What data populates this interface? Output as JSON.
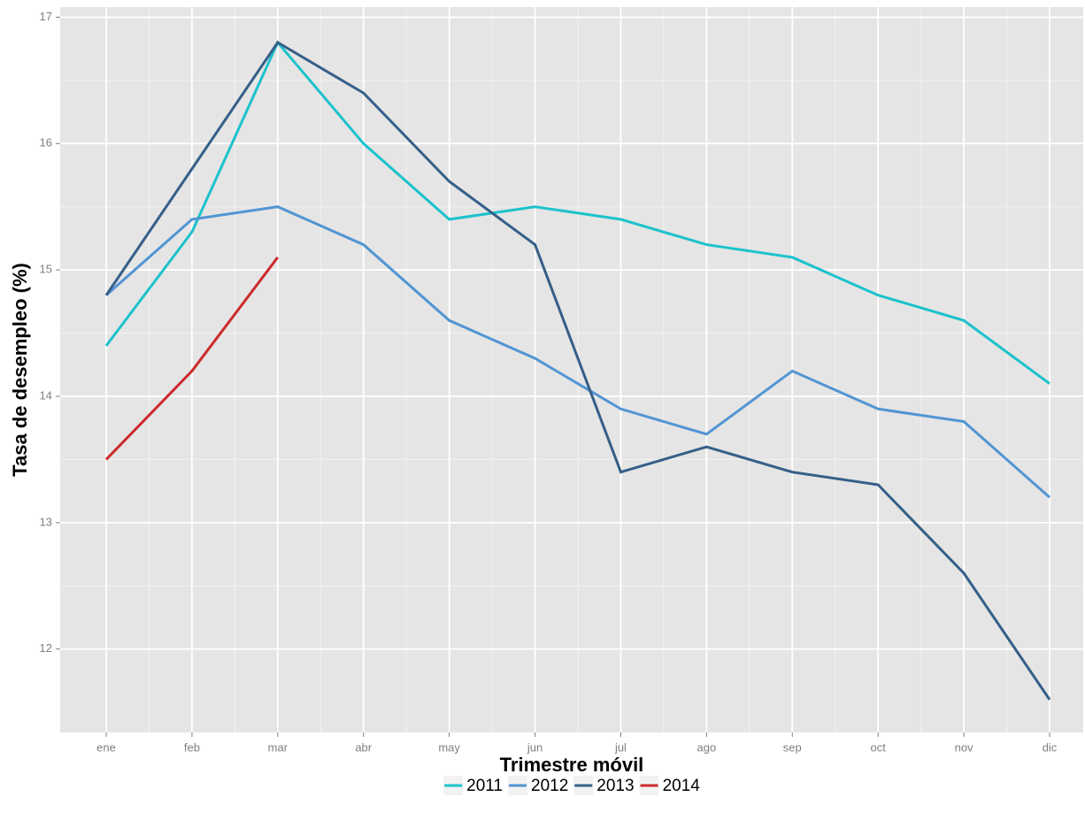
{
  "chart_data": {
    "type": "line",
    "x_label": "Trimestre móvil",
    "y_label": "Tasa de desempleo (%)",
    "categories": [
      "ene",
      "feb",
      "mar",
      "abr",
      "may",
      "jun",
      "jul",
      "ago",
      "sep",
      "oct",
      "nov",
      "dic"
    ],
    "series": [
      {
        "name": "2011",
        "color": "#1cc2cc",
        "values": [
          14.4,
          15.3,
          16.8,
          16.0,
          15.4,
          15.5,
          15.4,
          15.2,
          15.1,
          14.8,
          14.6,
          14.1
        ]
      },
      {
        "name": "2012",
        "color": "#5295d3",
        "values": [
          14.8,
          15.4,
          15.5,
          15.2,
          14.6,
          14.3,
          13.9,
          13.7,
          14.2,
          13.9,
          13.8,
          13.2
        ]
      },
      {
        "name": "2013",
        "color": "#355f88",
        "values": [
          14.8,
          15.8,
          16.8,
          16.4,
          15.7,
          15.2,
          13.4,
          13.6,
          13.4,
          13.3,
          12.6,
          11.6
        ]
      },
      {
        "name": "2014",
        "color": "#cc2a2c",
        "values": [
          13.5,
          14.2,
          15.1,
          null,
          null,
          null,
          null,
          null,
          null,
          null,
          null,
          null
        ]
      }
    ],
    "ylim": [
      11.34,
      17.08
    ],
    "yticks": [
      12,
      13,
      14,
      15,
      16,
      17
    ],
    "grid": true,
    "legend": "bottom"
  }
}
